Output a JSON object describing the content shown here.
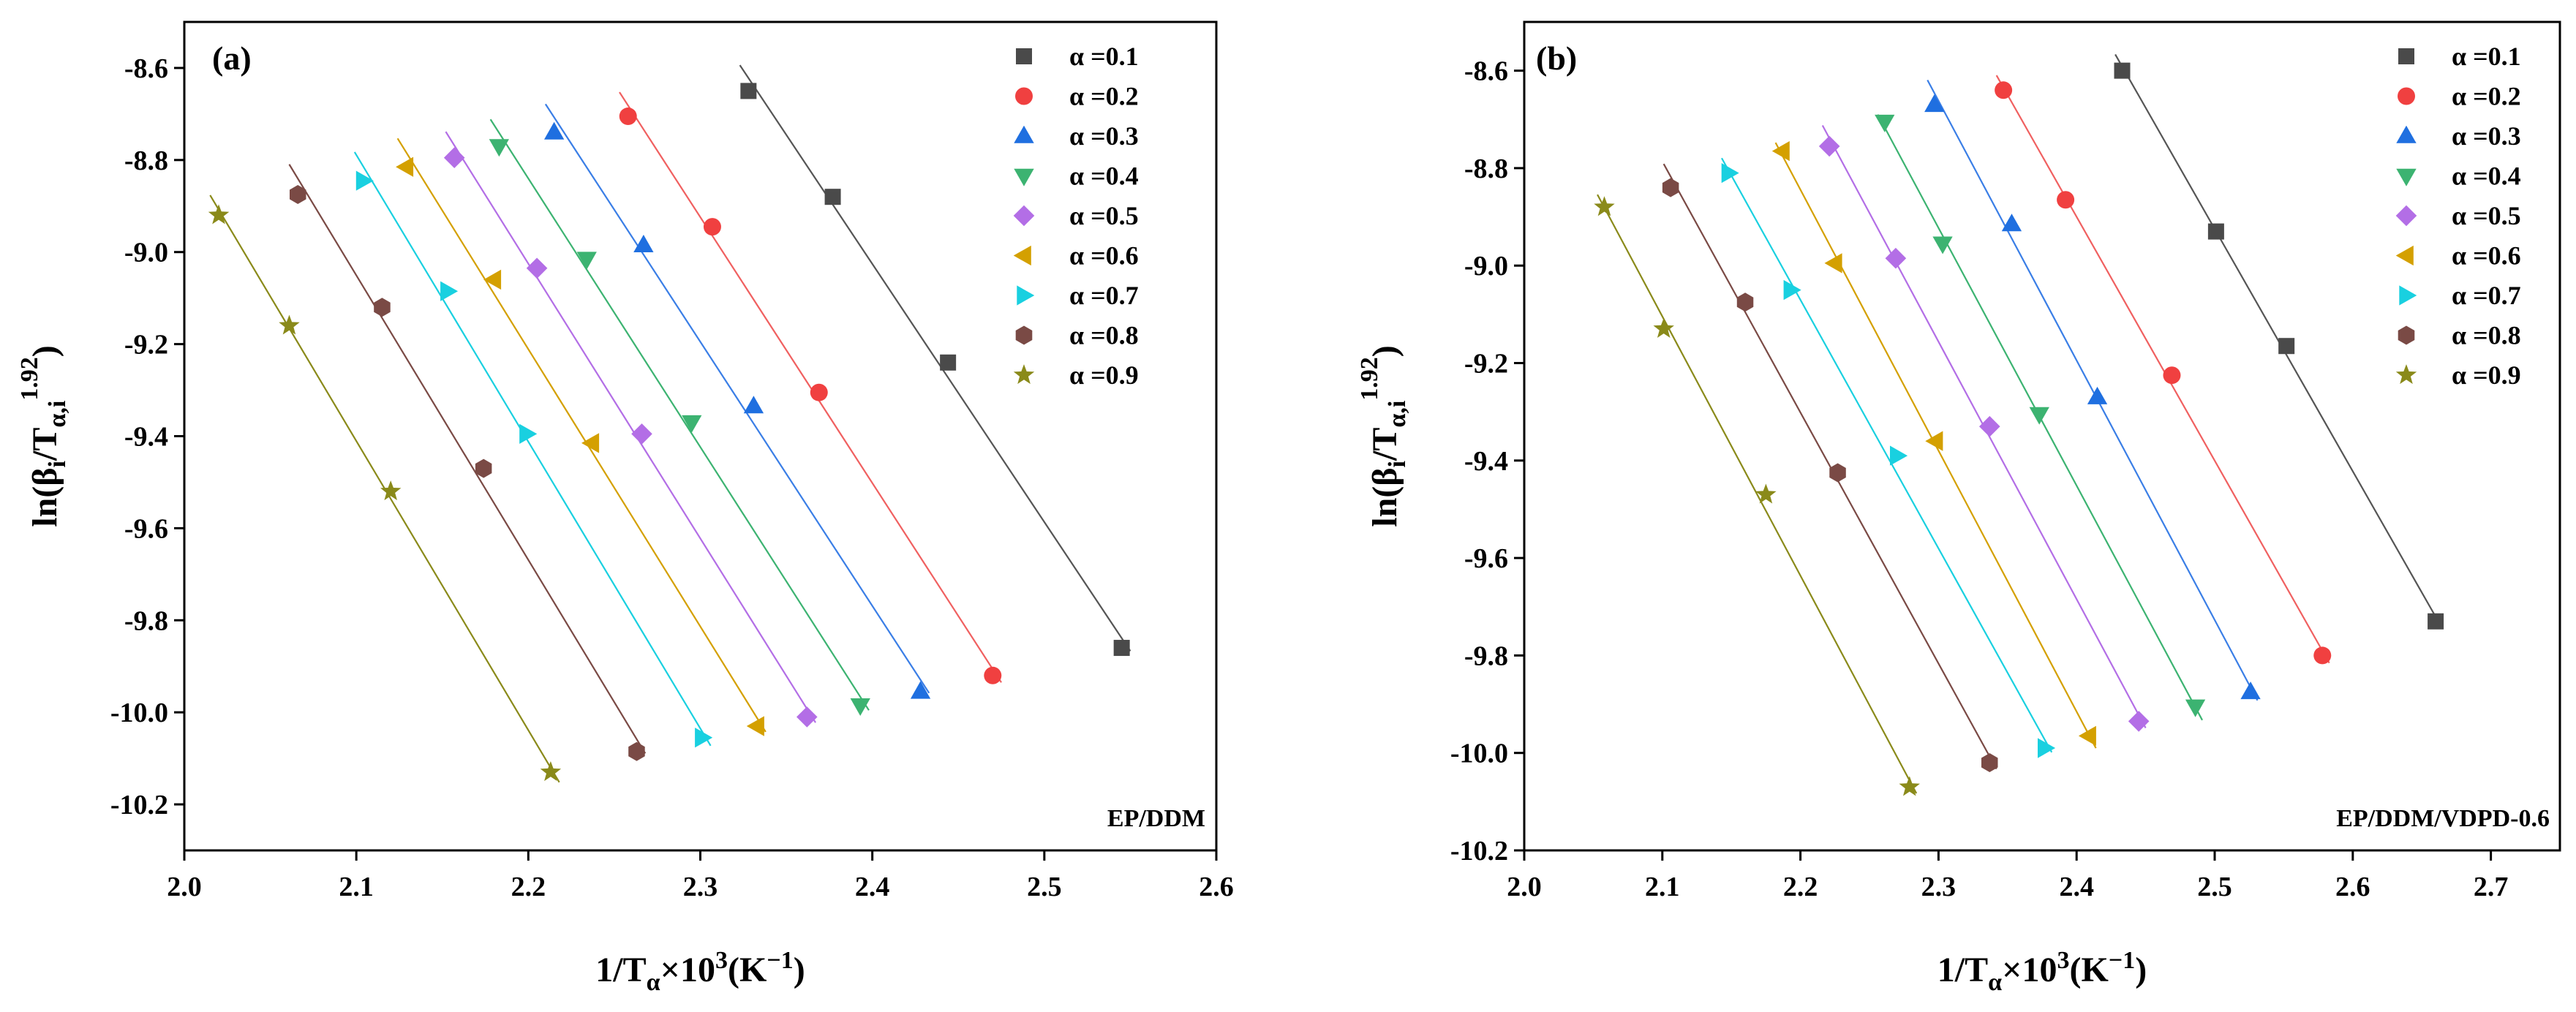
{
  "chart_data": [
    {
      "type": "scatter",
      "panel_label": "(a)",
      "annotation": "EP/DDM",
      "xlabel": {
        "main": "1/T",
        "sub": "α",
        "mid": "×10",
        "sup": "3",
        "tail": "(K",
        "tailsup": "−1",
        "end": ")"
      },
      "ylabel": {
        "main": "ln(β",
        "sub1": "i",
        "mid": "/T",
        "sub2": "α,i",
        "sup": "1.92",
        "end": ")"
      },
      "xlim": [
        2.0,
        2.6
      ],
      "ylim": [
        -10.3,
        -8.5
      ],
      "xticks": [
        "2.0",
        "2.1",
        "2.2",
        "2.3",
        "2.4",
        "2.5",
        "2.6"
      ],
      "yticks": [
        "-8.6",
        "-8.8",
        "-9.0",
        "-9.2",
        "-9.4",
        "-9.6",
        "-9.8",
        "-10.0",
        "-10.2"
      ],
      "series": [
        {
          "name": "α =0.1",
          "marker": "square",
          "color": "#4a4a4a",
          "line_color": "#555555",
          "x": [
            2.328,
            2.377,
            2.444,
            2.545
          ],
          "y": [
            -8.65,
            -8.88,
            -9.24,
            -9.86
          ]
        },
        {
          "name": "α =0.2",
          "marker": "circle",
          "color": "#f04040",
          "line_color": "#f06060",
          "x": [
            2.258,
            2.307,
            2.369,
            2.47
          ],
          "y": [
            -8.705,
            -8.945,
            -9.305,
            -9.92
          ]
        },
        {
          "name": "α =0.3",
          "marker": "triangle-up",
          "color": "#1f6fe0",
          "line_color": "#3a7ee6",
          "x": [
            2.215,
            2.267,
            2.331,
            2.428
          ],
          "y": [
            -8.74,
            -8.985,
            -9.335,
            -9.955
          ]
        },
        {
          "name": "α =0.4",
          "marker": "triangle-down",
          "color": "#3cb371",
          "line_color": "#3cb371",
          "x": [
            2.183,
            2.234,
            2.295,
            2.393
          ],
          "y": [
            -8.77,
            -9.015,
            -9.37,
            -9.985
          ]
        },
        {
          "name": "α =0.5",
          "marker": "diamond",
          "color": "#b36ee6",
          "line_color": "#b36ee6",
          "x": [
            2.157,
            2.205,
            2.266,
            2.362
          ],
          "y": [
            -8.795,
            -9.035,
            -9.395,
            -10.01
          ]
        },
        {
          "name": "α =0.6",
          "marker": "triangle-left",
          "color": "#d4a000",
          "line_color": "#d4a000",
          "x": [
            2.129,
            2.18,
            2.237,
            2.333
          ],
          "y": [
            -8.815,
            -9.06,
            -9.415,
            -10.03
          ]
        },
        {
          "name": "α =0.7",
          "marker": "triangle-right",
          "color": "#19d0e0",
          "line_color": "#19d0e0",
          "x": [
            2.104,
            2.153,
            2.199,
            2.301
          ],
          "y": [
            -8.845,
            -9.085,
            -9.395,
            -10.055
          ]
        },
        {
          "name": "α =0.8",
          "marker": "hexagon",
          "color": "#7a4a45",
          "line_color": "#7a4a45",
          "x": [
            2.066,
            2.115,
            2.174,
            2.263
          ],
          "y": [
            -8.875,
            -9.12,
            -9.47,
            -10.085
          ]
        },
        {
          "name": "α =0.9",
          "marker": "star",
          "color": "#8a8a1a",
          "line_color": "#8a8a1a",
          "x": [
            2.02,
            2.061,
            2.12,
            2.213
          ],
          "y": [
            -8.92,
            -9.16,
            -9.52,
            -10.13
          ]
        }
      ]
    },
    {
      "type": "scatter",
      "panel_label": "(b)",
      "annotation": "EP/DDM/VDPD-0.6",
      "xlabel": {
        "main": "1/T",
        "sub": "α",
        "mid": "×10",
        "sup": "3",
        "tail": "(K",
        "tailsup": "−1",
        "end": ")"
      },
      "ylabel": {
        "main": "ln(β",
        "sub1": "i",
        "mid": "/T",
        "sub2": "α,i",
        "sup": "1.92",
        "end": ")"
      },
      "xlim": [
        2.0,
        2.75
      ],
      "ylim": [
        -10.2,
        -8.5
      ],
      "xticks": [
        "2.0",
        "2.1",
        "2.2",
        "2.3",
        "2.4",
        "2.5",
        "2.6",
        "2.7"
      ],
      "yticks": [
        "-8.6",
        "-8.8",
        "-9.0",
        "-9.2",
        "-9.4",
        "-9.6",
        "-9.8",
        "-10.0",
        "-10.2"
      ],
      "series": [
        {
          "name": "α =0.1",
          "marker": "square",
          "color": "#4a4a4a",
          "line_color": "#555555",
          "x": [
            2.433,
            2.501,
            2.552,
            2.66
          ],
          "y": [
            -8.6,
            -8.93,
            -9.165,
            -9.73
          ]
        },
        {
          "name": "α =0.2",
          "marker": "circle",
          "color": "#f04040",
          "line_color": "#f06060",
          "x": [
            2.347,
            2.392,
            2.469,
            2.578
          ],
          "y": [
            -8.64,
            -8.865,
            -9.225,
            -9.8
          ]
        },
        {
          "name": "α =0.3",
          "marker": "triangle-up",
          "color": "#1f6fe0",
          "line_color": "#3a7ee6",
          "x": [
            2.297,
            2.353,
            2.415,
            2.526
          ],
          "y": [
            -8.67,
            -8.915,
            -9.27,
            -9.875
          ]
        },
        {
          "name": "α =0.4",
          "marker": "triangle-down",
          "color": "#3cb371",
          "line_color": "#3cb371",
          "x": [
            2.261,
            2.303,
            2.373,
            2.486
          ],
          "y": [
            -8.705,
            -8.955,
            -9.305,
            -9.905
          ]
        },
        {
          "name": "α =0.5",
          "marker": "diamond",
          "color": "#b36ee6",
          "line_color": "#b36ee6",
          "x": [
            2.221,
            2.269,
            2.337,
            2.445
          ],
          "y": [
            -8.755,
            -8.985,
            -9.33,
            -9.935
          ]
        },
        {
          "name": "α =0.6",
          "marker": "triangle-left",
          "color": "#d4a000",
          "line_color": "#d4a000",
          "x": [
            2.187,
            2.225,
            2.298,
            2.409
          ],
          "y": [
            -8.765,
            -8.995,
            -9.36,
            -9.965
          ]
        },
        {
          "name": "α =0.7",
          "marker": "triangle-right",
          "color": "#19d0e0",
          "line_color": "#19d0e0",
          "x": [
            2.148,
            2.193,
            2.27,
            2.377
          ],
          "y": [
            -8.81,
            -9.05,
            -9.39,
            -9.99
          ]
        },
        {
          "name": "α =0.8",
          "marker": "hexagon",
          "color": "#7a4a45",
          "line_color": "#7a4a45",
          "x": [
            2.106,
            2.16,
            2.227,
            2.337
          ],
          "y": [
            -8.84,
            -9.075,
            -9.425,
            -10.02
          ]
        },
        {
          "name": "α =0.9",
          "marker": "star",
          "color": "#8a8a1a",
          "line_color": "#8a8a1a",
          "x": [
            2.058,
            2.101,
            2.175,
            2.279
          ],
          "y": [
            -8.88,
            -9.13,
            -9.47,
            -10.07
          ]
        }
      ]
    }
  ]
}
